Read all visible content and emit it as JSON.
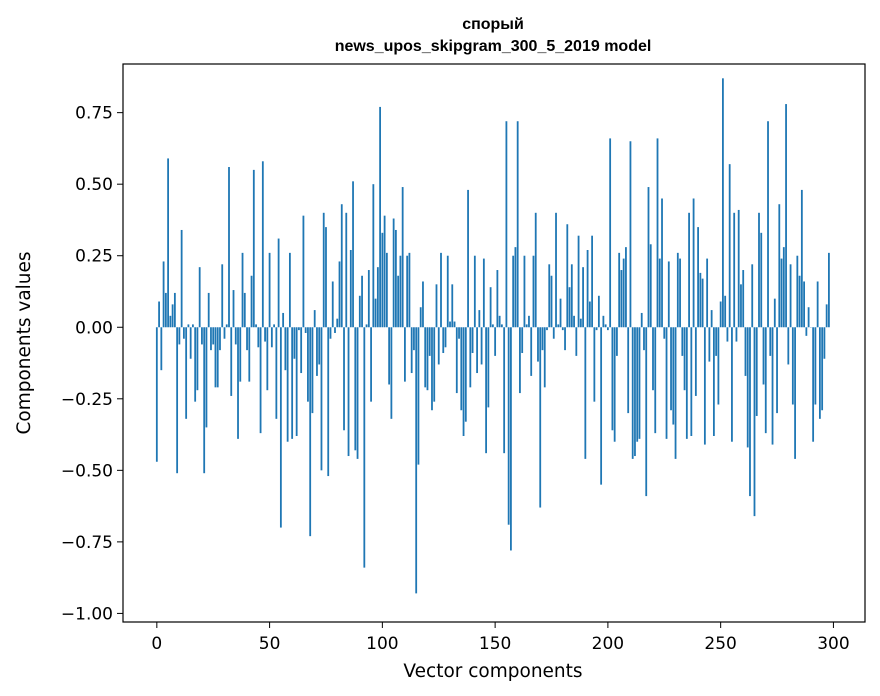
{
  "chart_data": {
    "type": "bar",
    "title_line1": "спорый",
    "title_line2": "news_upos_skipgram_300_5_2019 model",
    "xlabel": "Vector components",
    "ylabel": "Components values",
    "xlim": [
      -15,
      314
    ],
    "ylim": [
      -1.03,
      0.92
    ],
    "x_ticks": [
      0,
      50,
      100,
      150,
      200,
      250,
      300
    ],
    "x_tick_labels": [
      "0",
      "50",
      "100",
      "150",
      "200",
      "250",
      "300"
    ],
    "y_ticks": [
      0.75,
      0.5,
      0.25,
      0.0,
      -0.25,
      -0.5,
      -0.75,
      -1.0
    ],
    "y_tick_labels": [
      "0.75",
      "0.50",
      "0.25",
      "0.00",
      "−0.25",
      "−0.50",
      "−0.75",
      "−1.00"
    ],
    "bar_color": "#1f77b4",
    "series": [
      {
        "name": "components",
        "values": [
          -0.47,
          0.09,
          -0.15,
          0.23,
          0.12,
          0.59,
          0.04,
          0.08,
          0.12,
          -0.51,
          -0.06,
          0.34,
          -0.04,
          -0.32,
          0.01,
          -0.11,
          0.01,
          -0.26,
          -0.22,
          0.21,
          -0.06,
          -0.51,
          -0.35,
          0.12,
          -0.08,
          -0.06,
          -0.21,
          -0.21,
          -0.08,
          0.22,
          -0.04,
          0.01,
          0.56,
          -0.24,
          0.13,
          -0.06,
          -0.39,
          -0.19,
          0.26,
          0.12,
          -0.08,
          -0.19,
          0.18,
          0.55,
          0.01,
          -0.07,
          -0.37,
          0.58,
          -0.05,
          -0.22,
          0.26,
          -0.07,
          0.01,
          -0.32,
          0.31,
          -0.7,
          0.05,
          -0.15,
          -0.4,
          0.26,
          -0.39,
          -0.11,
          -0.38,
          -0.01,
          -0.16,
          0.39,
          -0.02,
          -0.26,
          -0.73,
          -0.3,
          0.06,
          -0.17,
          -0.13,
          -0.5,
          0.4,
          0.35,
          -0.52,
          -0.04,
          0.16,
          -0.02,
          0.03,
          0.23,
          0.43,
          -0.36,
          0.4,
          -0.45,
          0.27,
          0.51,
          -0.43,
          -0.46,
          0.11,
          0.18,
          -0.84,
          0.01,
          0.2,
          -0.26,
          0.5,
          0.1,
          0.21,
          0.77,
          0.33,
          0.39,
          0.26,
          -0.2,
          -0.32,
          0.38,
          0.34,
          0.18,
          0.25,
          0.49,
          -0.19,
          0.25,
          0.26,
          -0.16,
          -0.08,
          -0.93,
          -0.48,
          0.07,
          0.16,
          -0.21,
          -0.22,
          -0.1,
          -0.29,
          -0.26,
          0.15,
          -0.13,
          0.26,
          -0.09,
          -0.07,
          0.25,
          0.02,
          0.15,
          0.02,
          -0.23,
          -0.04,
          -0.29,
          -0.38,
          -0.33,
          0.48,
          -0.21,
          -0.09,
          0.25,
          -0.16,
          0.06,
          -0.13,
          0.24,
          -0.44,
          -0.28,
          0.14,
          0.01,
          -0.1,
          0.2,
          0.04,
          0.01,
          -0.44,
          0.72,
          -0.69,
          -0.78,
          0.25,
          0.28,
          0.72,
          -0.23,
          -0.09,
          0.25,
          0.01,
          0.04,
          -0.17,
          0.25,
          0.4,
          -0.12,
          -0.63,
          -0.08,
          -0.21,
          -0.01,
          0.22,
          0.18,
          -0.04,
          0.4,
          0.01,
          0.1,
          -0.01,
          -0.08,
          0.36,
          0.14,
          0.22,
          0.04,
          -0.1,
          0.32,
          0.03,
          0.21,
          -0.46,
          0.27,
          0.09,
          0.32,
          -0.26,
          -0.01,
          0.11,
          -0.55,
          0.04,
          0.01,
          -0.01,
          0.66,
          -0.36,
          -0.4,
          -0.1,
          0.26,
          0.2,
          0.24,
          0.28,
          -0.3,
          0.65,
          -0.46,
          -0.45,
          -0.4,
          -0.39,
          0.05,
          -0.08,
          -0.59,
          0.49,
          0.29,
          -0.22,
          -0.37,
          0.66,
          0.24,
          0.45,
          -0.04,
          -0.39,
          0.23,
          -0.29,
          -0.34,
          -0.46,
          0.26,
          0.24,
          -0.1,
          -0.22,
          -0.39,
          0.4,
          -0.38,
          0.45,
          -0.24,
          0.35,
          0.19,
          0.17,
          -0.41,
          0.24,
          -0.12,
          0.06,
          -0.38,
          -0.1,
          -0.27,
          0.09,
          0.87,
          0.11,
          -0.05,
          0.57,
          -0.4,
          0.4,
          -0.05,
          0.41,
          0.15,
          0.2,
          -0.17,
          -0.42,
          -0.59,
          0.22,
          -0.66,
          -0.31,
          0.4,
          0.33,
          -0.2,
          -0.37,
          0.72,
          -0.1,
          -0.41,
          0.1,
          -0.3,
          0.43,
          0.24,
          0.28,
          0.78,
          -0.13,
          0.22,
          -0.27,
          -0.46,
          0.25,
          0.18,
          0.48,
          0.16,
          -0.03,
          0.07,
          0.0,
          -0.4,
          -0.27,
          0.16,
          -0.32,
          -0.29,
          -0.11,
          0.08,
          0.26
        ]
      }
    ]
  }
}
